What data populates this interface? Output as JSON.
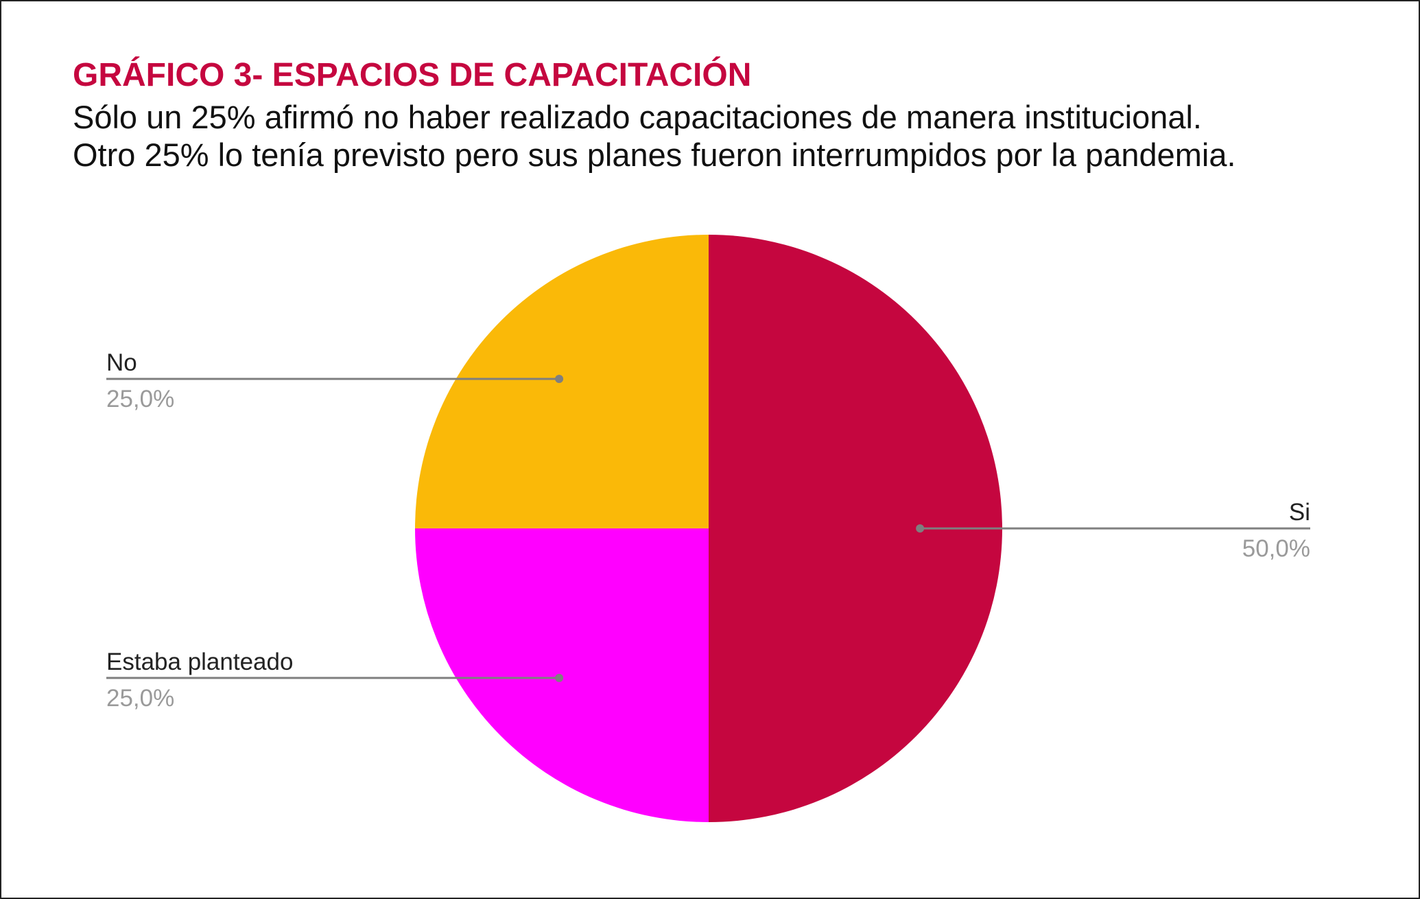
{
  "chart_data": {
    "type": "pie",
    "title": "GRÁFICO 3- ESPACIOS DE CAPACITACIÓN",
    "subtitle_lines": [
      "Sólo un 25% afirmó no haber realizado capacitaciones de manera institucional.",
      "Otro 25% lo tenía previsto pero sus planes fueron interrumpidos por la pandemia."
    ],
    "slices": [
      {
        "label": "Si",
        "value": 50.0,
        "value_label": "50,0%",
        "color": "#c5063f"
      },
      {
        "label": "Estaba planteado",
        "value": 25.0,
        "value_label": "25,0%",
        "color": "#ff00ff"
      },
      {
        "label": "No",
        "value": 25.0,
        "value_label": "25,0%",
        "color": "#fab908"
      }
    ],
    "start_angle": "12 o'clock",
    "direction": "clockwise",
    "legend": "none",
    "labels": "outside with leader lines"
  },
  "colors": {
    "title": "#c5063f",
    "leader_line": "#7f7f7f",
    "value_text": "#9a9a9a"
  }
}
